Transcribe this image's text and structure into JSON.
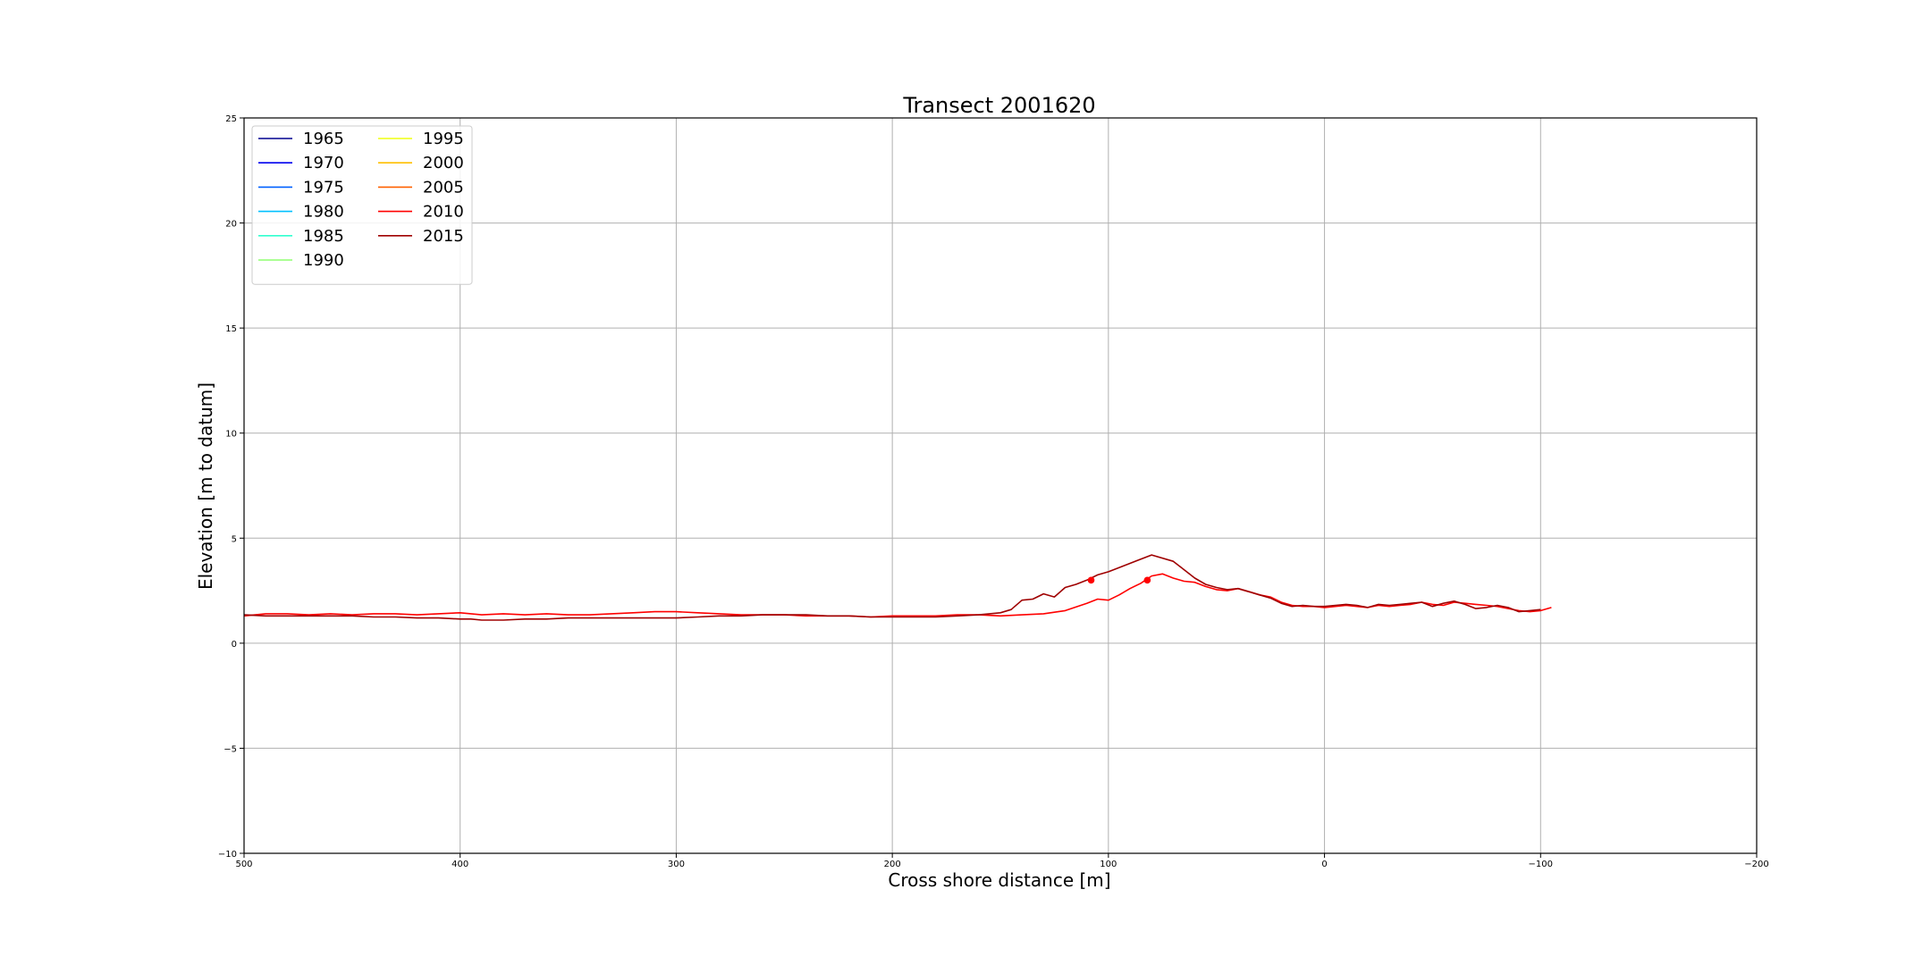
{
  "chart_data": {
    "type": "line",
    "title": "Transect 2001620",
    "xlabel": "Cross shore distance [m]",
    "ylabel": "Elevation [m to datum]",
    "xlim": [
      500,
      -200
    ],
    "ylim": [
      -10,
      25
    ],
    "x_inverted": true,
    "grid": true,
    "legend_placement": "top-left",
    "legend_columns": 2,
    "x_ticks": [
      500,
      400,
      300,
      200,
      100,
      0,
      -100,
      -200
    ],
    "x_tick_labels": [
      "500",
      "400",
      "300",
      "200",
      "100",
      "0",
      "−100",
      "−200"
    ],
    "y_ticks": [
      -10,
      -5,
      0,
      5,
      10,
      15,
      20,
      25
    ],
    "y_tick_labels": [
      "−10",
      "−5",
      "0",
      "5",
      "10",
      "15",
      "20",
      "25"
    ],
    "legend": [
      {
        "label": "1965",
        "color": "#00008f"
      },
      {
        "label": "1970",
        "color": "#0000ef"
      },
      {
        "label": "1975",
        "color": "#0060ff"
      },
      {
        "label": "1980",
        "color": "#00c0ff"
      },
      {
        "label": "1985",
        "color": "#30ffcf"
      },
      {
        "label": "1990",
        "color": "#8fff70"
      },
      {
        "label": "1995",
        "color": "#efff10"
      },
      {
        "label": "2000",
        "color": "#ffbf00"
      },
      {
        "label": "2005",
        "color": "#ff6000"
      },
      {
        "label": "2010",
        "color": "#ff0000"
      },
      {
        "label": "2015",
        "color": "#9f0000"
      }
    ],
    "series": [
      {
        "name": "2010",
        "color": "#ff0000",
        "x": [
          500,
          490,
          480,
          470,
          460,
          450,
          440,
          430,
          420,
          410,
          400,
          390,
          380,
          370,
          360,
          350,
          340,
          330,
          320,
          310,
          300,
          290,
          280,
          270,
          260,
          250,
          240,
          230,
          220,
          210,
          200,
          190,
          180,
          170,
          160,
          150,
          140,
          130,
          120,
          110,
          105,
          100,
          95,
          90,
          85,
          80,
          75,
          70,
          65,
          60,
          55,
          50,
          45,
          40,
          35,
          30,
          25,
          20,
          15,
          10,
          5,
          0,
          -5,
          -10,
          -15,
          -20,
          -25,
          -30,
          -35,
          -40,
          -45,
          -50,
          -55,
          -60,
          -65,
          -70,
          -75,
          -80,
          -85,
          -90,
          -95,
          -100,
          -105
        ],
        "y": [
          1.3,
          1.4,
          1.4,
          1.35,
          1.4,
          1.35,
          1.4,
          1.4,
          1.35,
          1.4,
          1.45,
          1.35,
          1.4,
          1.35,
          1.4,
          1.35,
          1.35,
          1.4,
          1.45,
          1.5,
          1.5,
          1.45,
          1.4,
          1.35,
          1.35,
          1.35,
          1.3,
          1.3,
          1.3,
          1.25,
          1.3,
          1.3,
          1.3,
          1.35,
          1.35,
          1.3,
          1.35,
          1.4,
          1.55,
          1.9,
          2.1,
          2.05,
          2.3,
          2.6,
          2.85,
          3.2,
          3.3,
          3.1,
          2.95,
          2.9,
          2.7,
          2.55,
          2.5,
          2.6,
          2.45,
          2.3,
          2.2,
          1.95,
          1.8,
          1.75,
          1.75,
          1.7,
          1.75,
          1.8,
          1.75,
          1.7,
          1.8,
          1.75,
          1.8,
          1.85,
          1.95,
          1.85,
          1.8,
          1.95,
          1.9,
          1.85,
          1.8,
          1.75,
          1.65,
          1.55,
          1.5,
          1.55,
          1.7
        ]
      },
      {
        "name": "2015",
        "color": "#9f0000",
        "x": [
          500,
          490,
          480,
          470,
          460,
          450,
          440,
          430,
          420,
          410,
          400,
          395,
          390,
          380,
          370,
          360,
          350,
          340,
          330,
          320,
          310,
          300,
          290,
          280,
          270,
          260,
          250,
          240,
          230,
          220,
          210,
          200,
          190,
          180,
          170,
          160,
          150,
          145,
          140,
          135,
          130,
          125,
          120,
          115,
          110,
          105,
          100,
          90,
          80,
          70,
          65,
          60,
          55,
          50,
          45,
          40,
          35,
          30,
          25,
          20,
          15,
          10,
          5,
          0,
          -5,
          -10,
          -15,
          -20,
          -25,
          -30,
          -35,
          -40,
          -45,
          -50,
          -55,
          -60,
          -65,
          -70,
          -75,
          -80,
          -85,
          -90,
          -95,
          -100
        ],
        "y": [
          1.35,
          1.3,
          1.3,
          1.3,
          1.3,
          1.3,
          1.25,
          1.25,
          1.2,
          1.2,
          1.15,
          1.15,
          1.1,
          1.1,
          1.15,
          1.15,
          1.2,
          1.2,
          1.2,
          1.2,
          1.2,
          1.2,
          1.25,
          1.3,
          1.3,
          1.35,
          1.35,
          1.35,
          1.3,
          1.3,
          1.25,
          1.25,
          1.25,
          1.25,
          1.3,
          1.35,
          1.45,
          1.6,
          2.05,
          2.1,
          2.35,
          2.2,
          2.65,
          2.8,
          3.0,
          3.25,
          3.4,
          3.8,
          4.2,
          3.9,
          3.5,
          3.1,
          2.8,
          2.65,
          2.55,
          2.6,
          2.45,
          2.3,
          2.15,
          1.9,
          1.75,
          1.8,
          1.75,
          1.75,
          1.8,
          1.85,
          1.8,
          1.7,
          1.85,
          1.8,
          1.85,
          1.9,
          1.95,
          1.75,
          1.9,
          2.0,
          1.85,
          1.65,
          1.7,
          1.8,
          1.7,
          1.5,
          1.55,
          1.6
        ]
      }
    ],
    "markers": [
      {
        "series": "2010",
        "x": 82,
        "y": 3.0,
        "color": "#ff0000"
      },
      {
        "series": "2015",
        "x": 108,
        "y": 3.0,
        "color": "#ff0000"
      }
    ]
  }
}
